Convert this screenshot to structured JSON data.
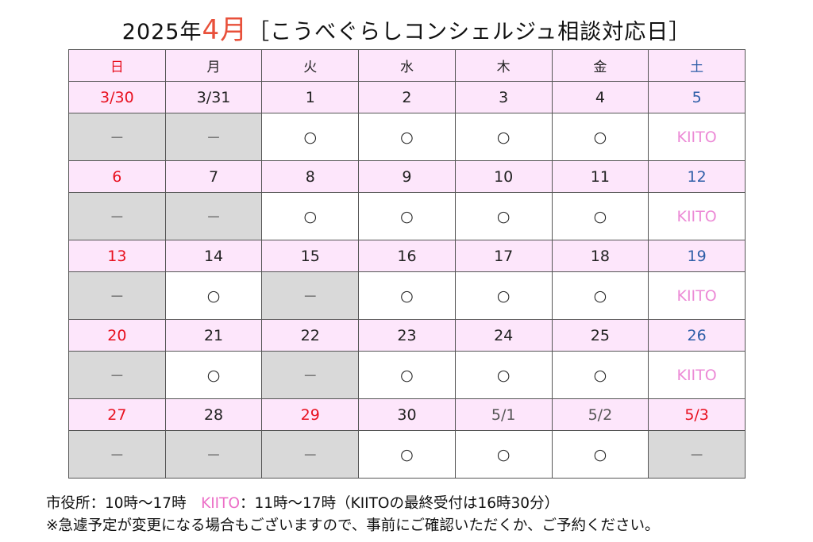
{
  "title": {
    "prefix": "2025年",
    "month": "4月",
    "suffix": "［こうべぐらしコンシェルジュ相談対応日］"
  },
  "weekdays": [
    "日",
    "月",
    "火",
    "水",
    "木",
    "金",
    "土"
  ],
  "weeks": [
    {
      "dates": [
        "3/30",
        "3/31",
        "1",
        "2",
        "3",
        "4",
        "5"
      ],
      "status": [
        "－",
        "－",
        "○",
        "○",
        "○",
        "○",
        "KIITO"
      ]
    },
    {
      "dates": [
        "6",
        "7",
        "8",
        "9",
        "10",
        "11",
        "12"
      ],
      "status": [
        "－",
        "－",
        "○",
        "○",
        "○",
        "○",
        "KIITO"
      ]
    },
    {
      "dates": [
        "13",
        "14",
        "15",
        "16",
        "17",
        "18",
        "19"
      ],
      "status": [
        "－",
        "○",
        "－",
        "○",
        "○",
        "○",
        "KIITO"
      ]
    },
    {
      "dates": [
        "20",
        "21",
        "22",
        "23",
        "24",
        "25",
        "26"
      ],
      "status": [
        "－",
        "○",
        "－",
        "○",
        "○",
        "○",
        "KIITO"
      ]
    },
    {
      "dates": [
        "27",
        "28",
        "29",
        "30",
        "5/1",
        "5/2",
        "5/3"
      ],
      "status": [
        "－",
        "－",
        "－",
        "○",
        "○",
        "○",
        "－"
      ]
    }
  ],
  "footer": {
    "line1_a": "市役所：10時～17時　",
    "line1_kiito": "KIITO",
    "line1_b": "：11時～17時（KIITOの最終受付は16時30分）",
    "line2": "※急遽予定が変更になる場合もございますので、事前にご確認いただくか、ご予約ください。"
  },
  "colors": {
    "header_bg": "#fde6fb",
    "closed_bg": "#d9d9d9",
    "sunday": "#e8101f",
    "saturday": "#2f5fa8",
    "kiito": "#ec8ad6",
    "month": "#e8503a"
  }
}
